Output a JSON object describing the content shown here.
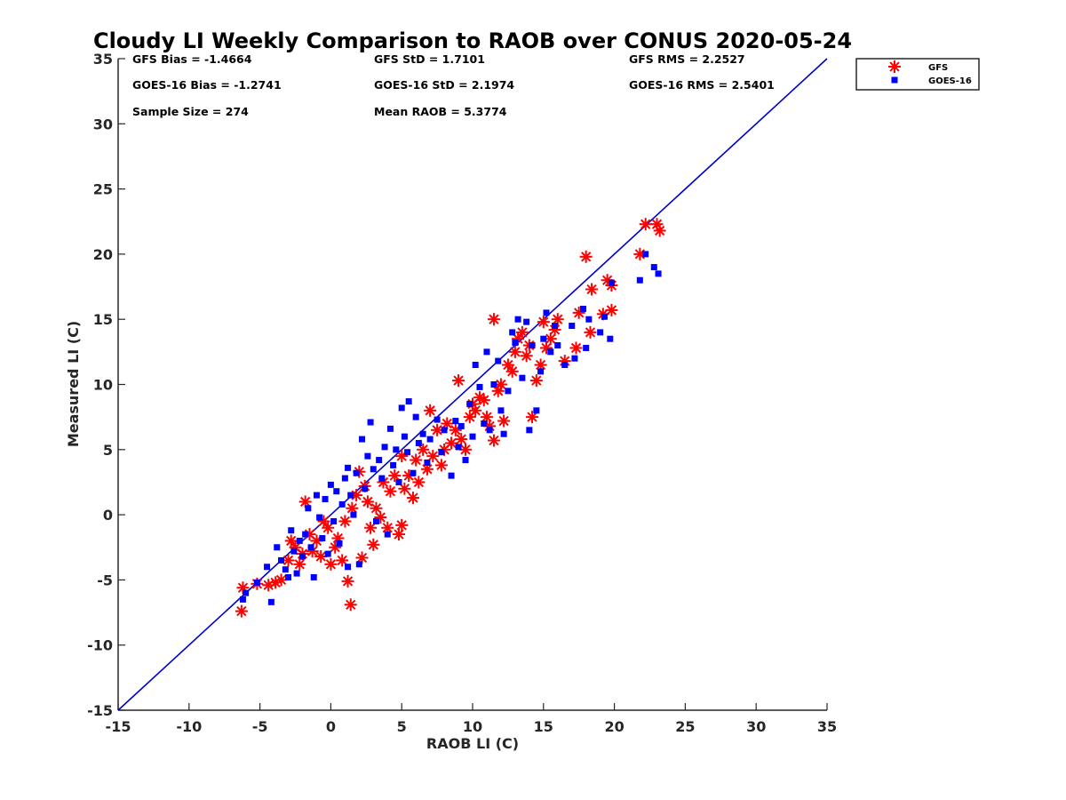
{
  "chart_data": {
    "type": "scatter",
    "title": "Cloudy LI Weekly Comparison to RAOB over CONUS 2020-05-24",
    "xlabel": "RAOB LI (C)",
    "ylabel": "Measured LI (C)",
    "xlim": [
      -15,
      35
    ],
    "ylim": [
      -15,
      35
    ],
    "xticks": [
      "-15",
      "-10",
      "-5",
      "0",
      "5",
      "10",
      "15",
      "20",
      "25",
      "30",
      "35"
    ],
    "yticks": [
      "-15",
      "-10",
      "-5",
      "0",
      "5",
      "10",
      "15",
      "20",
      "25",
      "30",
      "35"
    ],
    "reference_line": {
      "from": [
        -15,
        -15
      ],
      "to": [
        35,
        35
      ],
      "color": "#0000cc"
    },
    "legend_position": "top-right",
    "stats": [
      "GFS Bias = -1.4664",
      "GFS StD = 1.7101",
      "GFS RMS = 2.2527",
      "GOES-16 Bias = -1.2741",
      "GOES-16 StD = 2.1974",
      "GOES-16 RMS = 2.5401",
      "Sample Size = 274",
      "Mean RAOB = 5.3774"
    ],
    "series": [
      {
        "name": "GFS",
        "marker": "asterisk",
        "color": "#ff0000",
        "points": [
          [
            -6.3,
            -7.4
          ],
          [
            -6.2,
            -5.6
          ],
          [
            -4.4,
            -5.4
          ],
          [
            -3.5,
            -5.0
          ],
          [
            -3.9,
            -5.2
          ],
          [
            -5.2,
            -5.3
          ],
          [
            -3.0,
            -3.5
          ],
          [
            -2.8,
            -2.0
          ],
          [
            -2.5,
            -2.5
          ],
          [
            -2.2,
            -3.8
          ],
          [
            -2.0,
            -3.0
          ],
          [
            -1.8,
            1.0
          ],
          [
            -1.5,
            -1.5
          ],
          [
            -1.3,
            -2.8
          ],
          [
            -1.0,
            -2.0
          ],
          [
            -0.7,
            -3.2
          ],
          [
            -0.5,
            -0.5
          ],
          [
            -0.2,
            -1.0
          ],
          [
            0.0,
            -3.8
          ],
          [
            0.3,
            -2.5
          ],
          [
            0.5,
            -1.8
          ],
          [
            0.8,
            -3.5
          ],
          [
            1.0,
            -0.5
          ],
          [
            1.2,
            -5.1
          ],
          [
            1.4,
            -6.9
          ],
          [
            1.5,
            0.5
          ],
          [
            1.8,
            1.5
          ],
          [
            2.0,
            3.3
          ],
          [
            2.2,
            -3.3
          ],
          [
            2.4,
            2.2
          ],
          [
            2.6,
            1.0
          ],
          [
            2.8,
            -1.0
          ],
          [
            3.0,
            -2.3
          ],
          [
            3.2,
            0.5
          ],
          [
            3.5,
            -0.2
          ],
          [
            3.7,
            2.5
          ],
          [
            4.0,
            -1.0
          ],
          [
            4.2,
            1.8
          ],
          [
            4.5,
            3.0
          ],
          [
            4.8,
            -1.5
          ],
          [
            5.0,
            -0.8
          ],
          [
            5.0,
            4.5
          ],
          [
            5.2,
            2.0
          ],
          [
            5.5,
            3.0
          ],
          [
            5.8,
            1.3
          ],
          [
            6.0,
            4.2
          ],
          [
            6.2,
            2.5
          ],
          [
            6.5,
            5.0
          ],
          [
            6.8,
            3.5
          ],
          [
            7.0,
            8.0
          ],
          [
            7.2,
            4.5
          ],
          [
            7.5,
            6.5
          ],
          [
            7.8,
            3.8
          ],
          [
            8.0,
            5.0
          ],
          [
            8.2,
            7.0
          ],
          [
            8.5,
            5.5
          ],
          [
            8.8,
            6.5
          ],
          [
            9.0,
            10.3
          ],
          [
            9.2,
            5.8
          ],
          [
            9.5,
            5.0
          ],
          [
            9.8,
            7.5
          ],
          [
            10.0,
            8.5
          ],
          [
            10.2,
            8.0
          ],
          [
            10.5,
            9.0
          ],
          [
            10.8,
            8.8
          ],
          [
            11.0,
            7.5
          ],
          [
            11.2,
            6.8
          ],
          [
            11.5,
            5.7
          ],
          [
            11.5,
            15.0
          ],
          [
            11.8,
            9.5
          ],
          [
            12.0,
            10.0
          ],
          [
            12.2,
            7.2
          ],
          [
            12.5,
            11.5
          ],
          [
            12.8,
            11.0
          ],
          [
            13.0,
            12.5
          ],
          [
            13.2,
            13.5
          ],
          [
            13.5,
            14.0
          ],
          [
            13.8,
            12.2
          ],
          [
            14.0,
            13.0
          ],
          [
            14.2,
            7.5
          ],
          [
            14.5,
            10.3
          ],
          [
            14.8,
            11.5
          ],
          [
            15.0,
            14.8
          ],
          [
            15.2,
            12.8
          ],
          [
            15.5,
            13.5
          ],
          [
            15.8,
            14.2
          ],
          [
            16.0,
            15.0
          ],
          [
            16.5,
            11.8
          ],
          [
            17.3,
            12.8
          ],
          [
            17.5,
            15.5
          ],
          [
            18.0,
            19.8
          ],
          [
            18.3,
            14.0
          ],
          [
            18.4,
            17.3
          ],
          [
            19.2,
            15.4
          ],
          [
            19.5,
            18.0
          ],
          [
            19.8,
            15.7
          ],
          [
            19.8,
            17.6
          ],
          [
            21.8,
            20.0
          ],
          [
            22.2,
            22.3
          ],
          [
            23.0,
            22.3
          ],
          [
            23.2,
            21.8
          ]
        ]
      },
      {
        "name": "GOES-16",
        "marker": "square",
        "color": "#0000ff",
        "points": [
          [
            -6.2,
            -6.5
          ],
          [
            -6.0,
            -6.0
          ],
          [
            -5.2,
            -5.2
          ],
          [
            -4.5,
            -4.0
          ],
          [
            -4.2,
            -6.7
          ],
          [
            -3.8,
            -2.5
          ],
          [
            -3.5,
            -3.5
          ],
          [
            -3.2,
            -4.2
          ],
          [
            -3.0,
            -4.8
          ],
          [
            -2.8,
            -1.2
          ],
          [
            -2.6,
            -2.8
          ],
          [
            -2.4,
            -4.5
          ],
          [
            -2.2,
            -2.0
          ],
          [
            -2.0,
            -3.2
          ],
          [
            -1.8,
            -1.5
          ],
          [
            -1.6,
            0.5
          ],
          [
            -1.4,
            -2.5
          ],
          [
            -1.2,
            -4.8
          ],
          [
            -1.0,
            1.5
          ],
          [
            -0.8,
            -0.2
          ],
          [
            -0.6,
            -1.8
          ],
          [
            -0.4,
            1.2
          ],
          [
            -0.2,
            -3.0
          ],
          [
            0.0,
            2.3
          ],
          [
            0.2,
            -0.5
          ],
          [
            0.4,
            1.8
          ],
          [
            0.6,
            -2.2
          ],
          [
            0.8,
            0.8
          ],
          [
            1.0,
            2.8
          ],
          [
            1.2,
            -4.0
          ],
          [
            1.2,
            3.6
          ],
          [
            1.4,
            1.5
          ],
          [
            1.6,
            0.0
          ],
          [
            1.8,
            3.2
          ],
          [
            2.0,
            -3.8
          ],
          [
            2.2,
            5.8
          ],
          [
            2.4,
            2.0
          ],
          [
            2.6,
            4.5
          ],
          [
            2.8,
            7.1
          ],
          [
            3.0,
            3.5
          ],
          [
            3.2,
            -0.5
          ],
          [
            3.4,
            4.2
          ],
          [
            3.6,
            2.8
          ],
          [
            3.8,
            5.2
          ],
          [
            4.0,
            -1.5
          ],
          [
            4.2,
            6.6
          ],
          [
            4.4,
            3.8
          ],
          [
            4.6,
            5.0
          ],
          [
            4.8,
            2.5
          ],
          [
            5.0,
            8.2
          ],
          [
            5.2,
            6.0
          ],
          [
            5.4,
            4.8
          ],
          [
            5.5,
            8.7
          ],
          [
            5.8,
            3.2
          ],
          [
            6.0,
            7.5
          ],
          [
            6.2,
            5.5
          ],
          [
            6.5,
            6.2
          ],
          [
            6.8,
            4.0
          ],
          [
            7.0,
            5.8
          ],
          [
            7.5,
            7.3
          ],
          [
            7.8,
            4.8
          ],
          [
            8.0,
            6.5
          ],
          [
            8.5,
            3.0
          ],
          [
            8.8,
            7.2
          ],
          [
            9.0,
            5.2
          ],
          [
            9.2,
            6.8
          ],
          [
            9.5,
            4.2
          ],
          [
            9.8,
            8.5
          ],
          [
            10.0,
            6.0
          ],
          [
            10.2,
            11.5
          ],
          [
            10.5,
            9.8
          ],
          [
            10.8,
            7.0
          ],
          [
            11.0,
            12.5
          ],
          [
            11.2,
            6.5
          ],
          [
            11.5,
            10.0
          ],
          [
            11.8,
            11.8
          ],
          [
            12.0,
            8.0
          ],
          [
            12.2,
            6.2
          ],
          [
            12.5,
            9.5
          ],
          [
            12.8,
            14.0
          ],
          [
            13.0,
            13.2
          ],
          [
            13.2,
            15.0
          ],
          [
            13.5,
            10.5
          ],
          [
            13.8,
            14.8
          ],
          [
            14.0,
            6.5
          ],
          [
            14.2,
            13.0
          ],
          [
            14.5,
            8.0
          ],
          [
            14.8,
            11.0
          ],
          [
            15.0,
            13.5
          ],
          [
            15.2,
            15.5
          ],
          [
            15.5,
            12.5
          ],
          [
            15.8,
            14.5
          ],
          [
            16.0,
            13.0
          ],
          [
            16.5,
            11.5
          ],
          [
            17.0,
            14.5
          ],
          [
            17.2,
            12.0
          ],
          [
            17.8,
            15.8
          ],
          [
            18.0,
            12.8
          ],
          [
            18.2,
            15.0
          ],
          [
            19.0,
            14.0
          ],
          [
            19.3,
            15.2
          ],
          [
            19.7,
            13.5
          ],
          [
            19.8,
            17.8
          ],
          [
            21.8,
            18.0
          ],
          [
            22.2,
            20.0
          ],
          [
            22.8,
            19.0
          ],
          [
            23.1,
            18.5
          ]
        ]
      }
    ]
  }
}
